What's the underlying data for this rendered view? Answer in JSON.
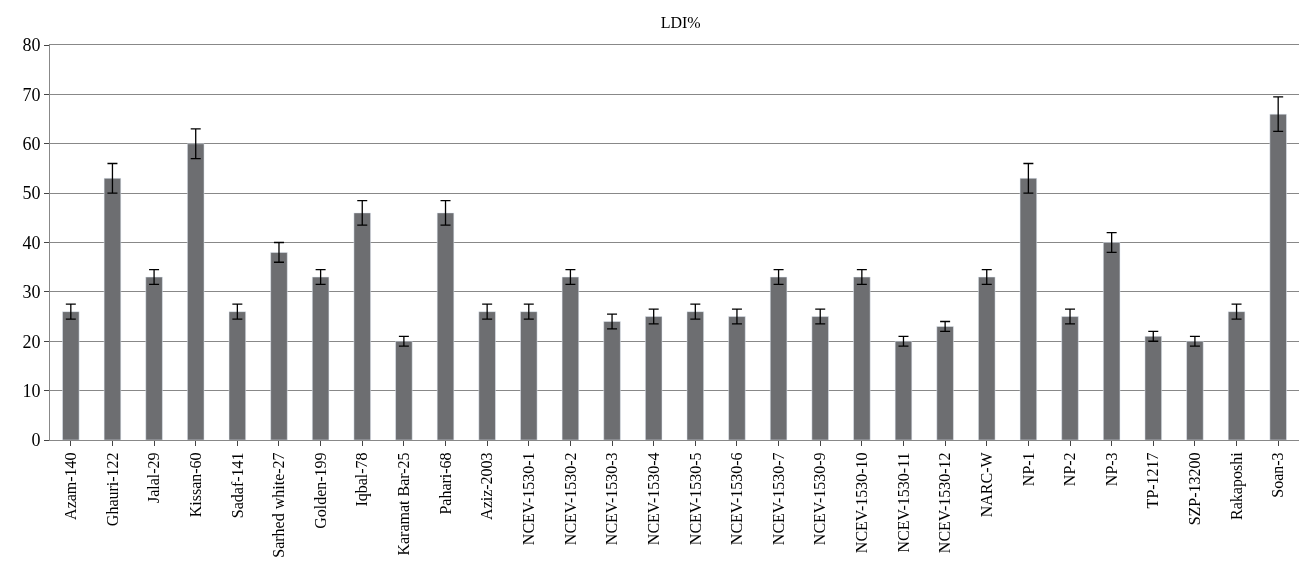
{
  "chart_data": {
    "type": "bar",
    "title": "LDI%",
    "categories": [
      "Azam-140",
      "Ghauri-122",
      "Jalal-29",
      "Kissan-60",
      "Sadaf-141",
      "Sarhed white-27",
      "Golden-199",
      "Iqbal-78",
      "Karamat Bar-25",
      "Pahari-68",
      "Aziz-2003",
      "NCEV-1530-1",
      "NCEV-1530-2",
      "NCEV-1530-3",
      "NCEV-1530-4",
      "NCEV-1530-5",
      "NCEV-1530-6",
      "NCEV-1530-7",
      "NCEV-1530-9",
      "NCEV-1530-10",
      "NCEV-1530-11",
      "NCEV-1530-12",
      "NARC-W",
      "NP-1",
      "NP-2",
      "NP-3",
      "TP-1217",
      "SZP-13200",
      "Rakaposhi",
      "Soan-3"
    ],
    "values": [
      26,
      53,
      33,
      60,
      26,
      38,
      33,
      46,
      20,
      46,
      26,
      26,
      33,
      24,
      25,
      26,
      25,
      33,
      25,
      33,
      20,
      23,
      33,
      53,
      25,
      40,
      21,
      20,
      26,
      66
    ],
    "errors": [
      1.5,
      3,
      1.5,
      3,
      1.5,
      2,
      1.5,
      2.5,
      1,
      2.5,
      1.5,
      1.5,
      1.5,
      1.5,
      1.5,
      1.5,
      1.5,
      1.5,
      1.5,
      1.5,
      1,
      1,
      1.5,
      3,
      1.5,
      2,
      1,
      1,
      1.5,
      3.5
    ],
    "color": "#6d6e71",
    "ylim": [
      0,
      80
    ],
    "yticks": [
      0,
      10,
      20,
      30,
      40,
      50,
      60,
      70,
      80
    ],
    "grid": "y"
  }
}
